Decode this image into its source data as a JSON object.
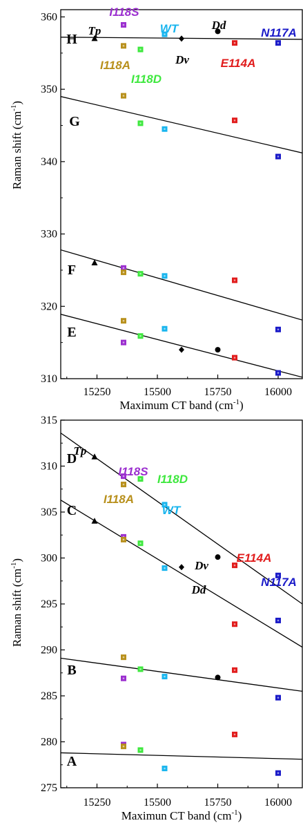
{
  "colors": {
    "Tp": "#000000",
    "I118S": "#9b2fcf",
    "I118A": "#b8901c",
    "I118D": "#3fe83f",
    "WT": "#19b5ee",
    "Dv": "#000000",
    "Dd": "#000000",
    "E114A": "#e11c1c",
    "N117A": "#1a1ac8"
  },
  "point_labels": [
    {
      "key": "Tp",
      "text": "Tp"
    },
    {
      "key": "I118S",
      "text": "I118S"
    },
    {
      "key": "I118A",
      "text": "I118A"
    },
    {
      "key": "I118D",
      "text": "I118D"
    },
    {
      "key": "WT",
      "text": "WT"
    },
    {
      "key": "Dv",
      "text": "Dv"
    },
    {
      "key": "Dd",
      "text": "Dd"
    },
    {
      "key": "E114A",
      "text": "E114A"
    },
    {
      "key": "N117A",
      "text": "N117A"
    }
  ],
  "chart_data": [
    {
      "type": "scatter",
      "xlabel": "Maximum CT band (cm",
      "xlabel_sup": "-1",
      "xlabel_end": ")",
      "ylabel": "Raman shift (cm",
      "ylabel_sup": "-1",
      "ylabel_end": ")",
      "xlim": [
        15100,
        16100
      ],
      "ylim": [
        310,
        361
      ],
      "xticks": [
        "15250",
        "15500",
        "15750",
        "16000"
      ],
      "xtick_values": [
        15250,
        15500,
        15750,
        16000
      ],
      "yticks": [
        "310",
        "320",
        "330",
        "340",
        "350",
        "360"
      ],
      "ytick_values": [
        310,
        320,
        330,
        340,
        350,
        360
      ],
      "series": [
        {
          "name": "H",
          "fit": [
            [
              15100,
              357.2
            ],
            [
              16100,
              356.9
            ]
          ],
          "points": [
            {
              "key": "Tp",
              "marker": "triangle",
              "x": 15240,
              "y": 357.0
            },
            {
              "key": "I118S",
              "marker": "square",
              "x": 15360,
              "y": 358.9
            },
            {
              "key": "I118A",
              "marker": "square",
              "x": 15360,
              "y": 356.0
            },
            {
              "key": "I118D",
              "marker": "square",
              "x": 15430,
              "y": 355.5
            },
            {
              "key": "WT",
              "marker": "square",
              "x": 15530,
              "y": 357.6
            },
            {
              "key": "Dv",
              "marker": "diamond",
              "x": 15600,
              "y": 357.0
            },
            {
              "key": "Dd",
              "marker": "circle",
              "x": 15750,
              "y": 358.0
            },
            {
              "key": "E114A",
              "marker": "square",
              "x": 15820,
              "y": 356.4
            },
            {
              "key": "N117A",
              "marker": "square",
              "x": 16000,
              "y": 356.4
            }
          ]
        },
        {
          "name": "G",
          "fit": [
            [
              15100,
              349.0
            ],
            [
              16100,
              341.2
            ]
          ],
          "points": [
            {
              "key": "I118A",
              "marker": "square",
              "x": 15360,
              "y": 349.1
            },
            {
              "key": "I118D",
              "marker": "square",
              "x": 15430,
              "y": 345.3
            },
            {
              "key": "WT",
              "marker": "square",
              "x": 15530,
              "y": 344.5
            },
            {
              "key": "E114A",
              "marker": "square",
              "x": 15820,
              "y": 345.7
            },
            {
              "key": "N117A",
              "marker": "square",
              "x": 16000,
              "y": 340.7
            }
          ]
        },
        {
          "name": "F",
          "fit": [
            [
              15100,
              327.8
            ],
            [
              16100,
              318.1
            ]
          ],
          "points": [
            {
              "key": "Tp",
              "marker": "triangle",
              "x": 15240,
              "y": 326.0
            },
            {
              "key": "I118S",
              "marker": "square",
              "x": 15360,
              "y": 325.3
            },
            {
              "key": "I118A",
              "marker": "square",
              "x": 15360,
              "y": 324.7
            },
            {
              "key": "I118D",
              "marker": "square",
              "x": 15430,
              "y": 324.5
            },
            {
              "key": "WT",
              "marker": "square",
              "x": 15530,
              "y": 324.2
            },
            {
              "key": "E114A",
              "marker": "square",
              "x": 15820,
              "y": 323.6
            },
            {
              "key": "N117A",
              "marker": "square",
              "x": 16000,
              "y": 316.8
            }
          ]
        },
        {
          "name": "E",
          "fit": [
            [
              15100,
              318.9
            ],
            [
              16100,
              310.2
            ]
          ],
          "points": [
            {
              "key": "I118A",
              "marker": "square",
              "x": 15360,
              "y": 318.0
            },
            {
              "key": "I118S",
              "marker": "square",
              "x": 15360,
              "y": 315.0
            },
            {
              "key": "I118D",
              "marker": "square",
              "x": 15430,
              "y": 315.9
            },
            {
              "key": "WT",
              "marker": "square",
              "x": 15530,
              "y": 316.9
            },
            {
              "key": "Dv",
              "marker": "diamond",
              "x": 15600,
              "y": 314.0
            },
            {
              "key": "Dd",
              "marker": "circle",
              "x": 15750,
              "y": 314.0
            },
            {
              "key": "E114A",
              "marker": "square",
              "x": 15820,
              "y": 312.9
            },
            {
              "key": "N117A",
              "marker": "square",
              "x": 16000,
              "y": 310.8
            }
          ]
        }
      ]
    },
    {
      "type": "scatter",
      "xlabel": "Maximun CT band (cm",
      "xlabel_sup": "-1",
      "xlabel_end": ")",
      "ylabel": "Raman shift (cm",
      "ylabel_sup": "-1",
      "ylabel_end": ")",
      "xlim": [
        15100,
        16100
      ],
      "ylim": [
        275,
        315
      ],
      "xticks": [
        "15250",
        "15500",
        "15750",
        "16000"
      ],
      "xtick_values": [
        15250,
        15500,
        15750,
        16000
      ],
      "yticks": [
        "275",
        "280",
        "285",
        "290",
        "295",
        "300",
        "305",
        "310",
        "315"
      ],
      "ytick_values": [
        275,
        280,
        285,
        290,
        295,
        300,
        305,
        310,
        315
      ],
      "series": [
        {
          "name": "D",
          "fit": [
            [
              15100,
              313.6
            ],
            [
              16100,
              295.0
            ]
          ],
          "points": [
            {
              "key": "Tp",
              "marker": "triangle",
              "x": 15240,
              "y": 311.0
            },
            {
              "key": "I118S",
              "marker": "square",
              "x": 15360,
              "y": 308.9
            },
            {
              "key": "I118A",
              "marker": "square",
              "x": 15360,
              "y": 308.0
            },
            {
              "key": "I118D",
              "marker": "square",
              "x": 15430,
              "y": 308.6
            },
            {
              "key": "WT",
              "marker": "square",
              "x": 15530,
              "y": 305.8
            },
            {
              "key": "Dd",
              "marker": "circle",
              "x": 15750,
              "y": 300.1
            },
            {
              "key": "E114A",
              "marker": "square",
              "x": 15820,
              "y": 299.2
            },
            {
              "key": "N117A",
              "marker": "square",
              "x": 16000,
              "y": 298.1
            }
          ]
        },
        {
          "name": "C",
          "fit": [
            [
              15100,
              306.3
            ],
            [
              16100,
              290.3
            ]
          ],
          "points": [
            {
              "key": "Tp",
              "marker": "triangle",
              "x": 15240,
              "y": 304.0
            },
            {
              "key": "I118S",
              "marker": "square",
              "x": 15360,
              "y": 302.3
            },
            {
              "key": "I118A",
              "marker": "square",
              "x": 15360,
              "y": 302.0
            },
            {
              "key": "I118D",
              "marker": "square",
              "x": 15430,
              "y": 301.6
            },
            {
              "key": "WT",
              "marker": "square",
              "x": 15530,
              "y": 298.9
            },
            {
              "key": "Dv",
              "marker": "diamond",
              "x": 15600,
              "y": 299.0
            },
            {
              "key": "E114A",
              "marker": "square",
              "x": 15820,
              "y": 292.8
            },
            {
              "key": "N117A",
              "marker": "square",
              "x": 16000,
              "y": 293.2
            }
          ]
        },
        {
          "name": "B",
          "fit": [
            [
              15100,
              289.1
            ],
            [
              16100,
              285.5
            ]
          ],
          "points": [
            {
              "key": "I118A",
              "marker": "square",
              "x": 15360,
              "y": 289.2
            },
            {
              "key": "I118S",
              "marker": "square",
              "x": 15360,
              "y": 286.9
            },
            {
              "key": "I118D",
              "marker": "square",
              "x": 15430,
              "y": 287.9
            },
            {
              "key": "WT",
              "marker": "square",
              "x": 15530,
              "y": 287.1
            },
            {
              "key": "Dd",
              "marker": "circle",
              "x": 15750,
              "y": 287.0
            },
            {
              "key": "E114A",
              "marker": "square",
              "x": 15820,
              "y": 287.8
            },
            {
              "key": "N117A",
              "marker": "square",
              "x": 16000,
              "y": 284.8
            }
          ]
        },
        {
          "name": "A",
          "fit": [
            [
              15100,
              278.8
            ],
            [
              16100,
              278.1
            ]
          ],
          "points": [
            {
              "key": "I118S",
              "marker": "square",
              "x": 15360,
              "y": 279.7
            },
            {
              "key": "I118A",
              "marker": "square",
              "x": 15360,
              "y": 279.5
            },
            {
              "key": "I118D",
              "marker": "square",
              "x": 15430,
              "y": 279.1
            },
            {
              "key": "WT",
              "marker": "square",
              "x": 15530,
              "y": 277.1
            },
            {
              "key": "E114A",
              "marker": "square",
              "x": 15820,
              "y": 280.8
            },
            {
              "key": "N117A",
              "marker": "square",
              "x": 16000,
              "y": 276.6
            }
          ]
        }
      ]
    }
  ]
}
